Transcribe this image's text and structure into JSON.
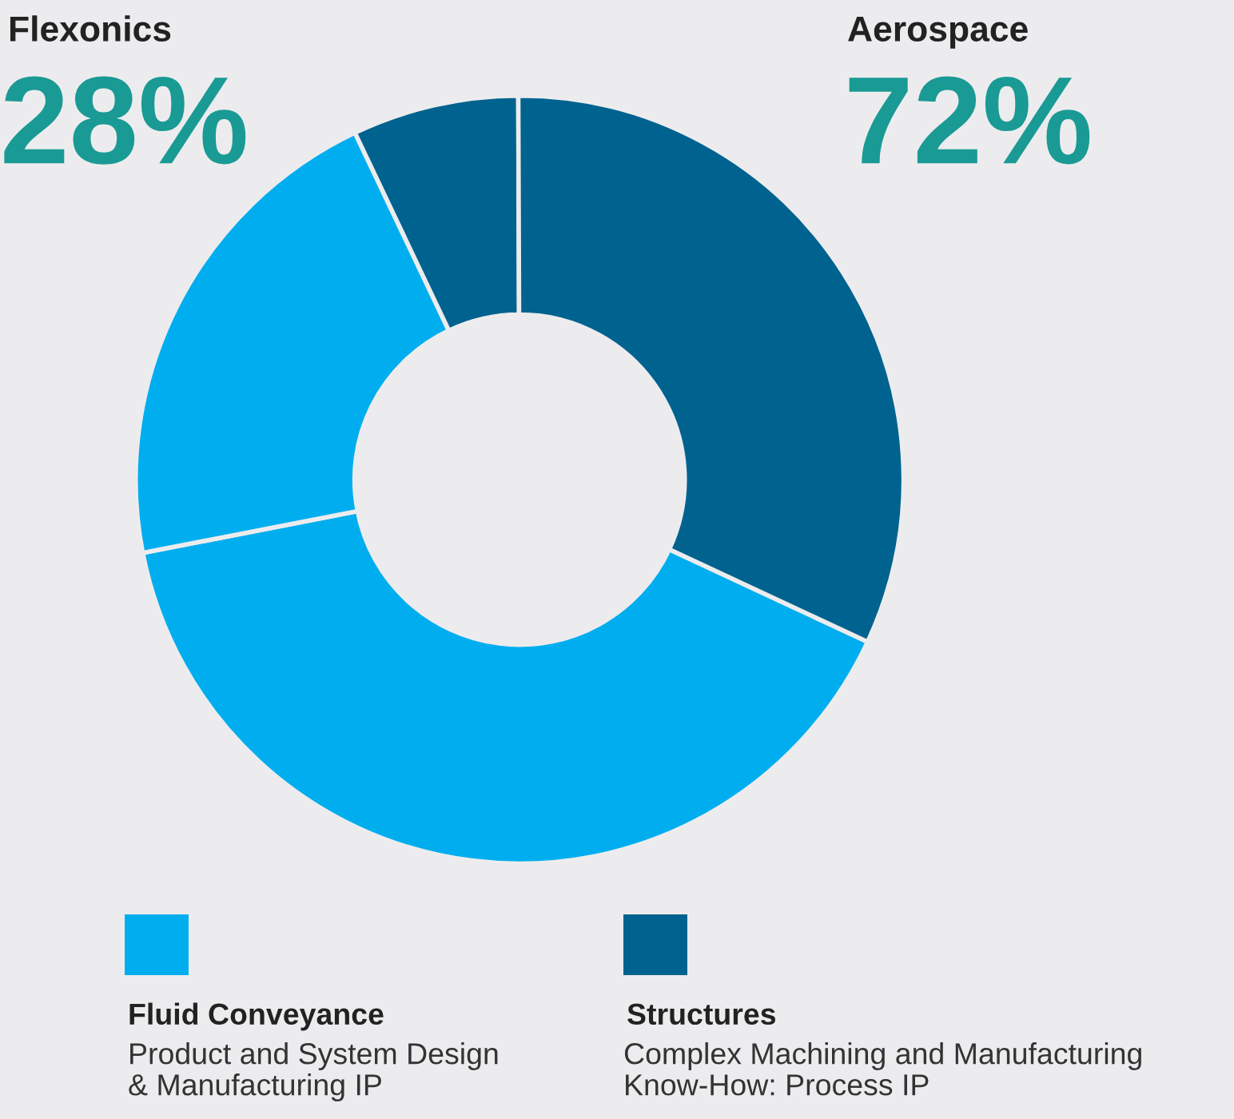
{
  "chart_data": {
    "type": "donut",
    "categories": [
      "Fluid Conveyance",
      null,
      null,
      "Structures"
    ],
    "values": [
      40,
      21,
      7,
      32
    ],
    "colors": [
      "#00aeef",
      "#00aeef",
      "#00628f",
      "#00628f"
    ],
    "legend": "bottom",
    "annotations": [
      "Flexonics",
      "28%",
      "Aerospace",
      "72%",
      "Product and System Design\n& Manufacturing IP",
      "Complex Machining and Manufacturing\nKnow-How: Process IP"
    ]
  }
}
